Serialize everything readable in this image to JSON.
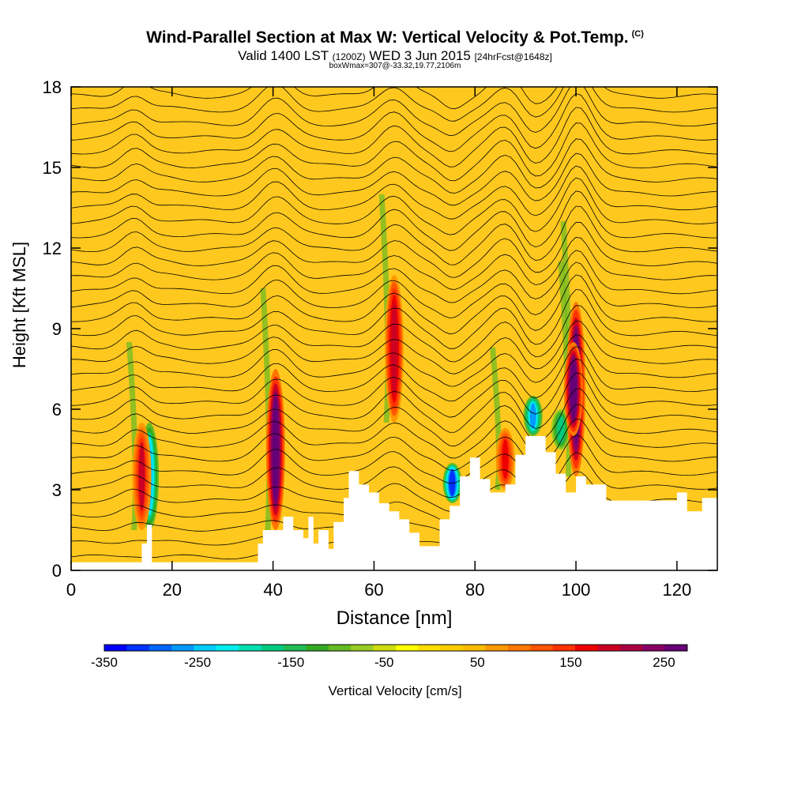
{
  "header": {
    "title": "Wind-Parallel Section at Max W: Vertical Velocity & Pot.Temp.",
    "copyright": "(C)",
    "valid_prefix": "Valid 1400 LST",
    "valid_utc": "(1200Z)",
    "valid_date": "WED 3 Jun 2015",
    "forecast": "[24hrFcst@1648z]",
    "box_info": "boxWmax=307@-33.32,19.77,2106m"
  },
  "chart_data": {
    "type": "heatmap",
    "title": "Wind-Parallel Section at Max W: Vertical Velocity & Pot.Temp.",
    "xlabel": "Distance [nm]",
    "ylabel": "Height [Kft MSL]",
    "xlim": [
      0,
      128
    ],
    "ylim": [
      0,
      18
    ],
    "x_ticks": [
      0,
      20,
      40,
      60,
      80,
      100,
      120
    ],
    "y_ticks": [
      0,
      3,
      6,
      9,
      12,
      15,
      18
    ],
    "colorbar": {
      "label": "Vertical Velocity [cm/s]",
      "range": [
        -350,
        275
      ],
      "tick_labels": [
        "-350",
        "-250",
        "-150",
        "-50",
        "50",
        "150",
        "250"
      ],
      "tick_values": [
        -350,
        -250,
        -150,
        -50,
        50,
        150,
        250
      ],
      "colors": [
        "#0000ff",
        "#0033ff",
        "#0066ff",
        "#0099ff",
        "#00ccff",
        "#00eeee",
        "#00e0b0",
        "#00cc80",
        "#22bb55",
        "#33aa22",
        "#66bb22",
        "#99cc22",
        "#ccdd11",
        "#ffff00",
        "#ffdd00",
        "#ffcc00",
        "#ffbb00",
        "#ff9900",
        "#ff7700",
        "#ff5500",
        "#ff3300",
        "#ee0000",
        "#cc0022",
        "#aa0044",
        "#880066",
        "#660077"
      ]
    },
    "background_color": "#ffc81e",
    "updrafts": [
      {
        "x": 14,
        "z_bottom": 1.5,
        "z_top": 5.5,
        "w": 180
      },
      {
        "x": 40.5,
        "z_bottom": 1.5,
        "z_top": 7.5,
        "w": 275
      },
      {
        "x": 64,
        "z_bottom": 5.5,
        "z_top": 11.0,
        "w": 200
      },
      {
        "x": 86,
        "z_bottom": 3.0,
        "z_top": 5.3,
        "w": 170
      },
      {
        "x": 100,
        "z_bottom": 3.5,
        "z_top": 10.0,
        "w": 300
      },
      {
        "x": 99.5,
        "z_bottom": 5.0,
        "z_top": 8.5,
        "w": 275
      }
    ],
    "downdrafts": [
      {
        "x": 15.5,
        "z_bottom": 1.5,
        "z_top": 5.5,
        "w": -250
      },
      {
        "x": 75.5,
        "z_bottom": 2.5,
        "z_top": 4.0,
        "w": -320
      },
      {
        "x": 91.5,
        "z_bottom": 5.0,
        "z_top": 6.5,
        "w": -260
      },
      {
        "x": 97.0,
        "z_bottom": 4.5,
        "z_top": 6.0,
        "w": -180
      }
    ],
    "terrain_profile": [
      [
        0,
        0.3
      ],
      [
        14,
        0.3
      ],
      [
        14,
        1.0
      ],
      [
        15,
        1.0
      ],
      [
        15,
        1.7
      ],
      [
        16,
        1.7
      ],
      [
        16,
        0.3
      ],
      [
        37,
        0.3
      ],
      [
        37,
        1.0
      ],
      [
        38,
        1.0
      ],
      [
        38,
        1.5
      ],
      [
        42,
        1.5
      ],
      [
        42,
        2.0
      ],
      [
        44,
        2.0
      ],
      [
        44,
        1.5
      ],
      [
        46,
        1.5
      ],
      [
        46,
        1.2
      ],
      [
        47,
        1.2
      ],
      [
        47,
        2.0
      ],
      [
        48,
        2.0
      ],
      [
        48,
        1.0
      ],
      [
        49,
        1.0
      ],
      [
        49,
        1.5
      ],
      [
        51,
        1.5
      ],
      [
        51,
        0.8
      ],
      [
        52,
        0.8
      ],
      [
        52,
        1.8
      ],
      [
        54,
        1.8
      ],
      [
        54,
        2.7
      ],
      [
        55,
        2.7
      ],
      [
        55,
        3.7
      ],
      [
        57,
        3.7
      ],
      [
        57,
        3.2
      ],
      [
        59,
        3.2
      ],
      [
        59,
        2.9
      ],
      [
        61,
        2.9
      ],
      [
        61,
        2.5
      ],
      [
        63,
        2.5
      ],
      [
        63,
        2.2
      ],
      [
        65,
        2.2
      ],
      [
        65,
        1.9
      ],
      [
        67,
        1.9
      ],
      [
        67,
        1.4
      ],
      [
        69,
        1.4
      ],
      [
        69,
        0.9
      ],
      [
        73,
        0.9
      ],
      [
        73,
        1.9
      ],
      [
        75,
        1.9
      ],
      [
        75,
        2.4
      ],
      [
        77,
        2.4
      ],
      [
        77,
        3.5
      ],
      [
        79,
        3.5
      ],
      [
        79,
        4.2
      ],
      [
        81,
        4.2
      ],
      [
        81,
        3.4
      ],
      [
        83,
        3.4
      ],
      [
        83,
        2.9
      ],
      [
        86,
        2.9
      ],
      [
        86,
        3.2
      ],
      [
        88,
        3.2
      ],
      [
        88,
        4.3
      ],
      [
        90,
        4.3
      ],
      [
        90,
        5.0
      ],
      [
        94,
        5.0
      ],
      [
        94,
        4.4
      ],
      [
        96,
        4.4
      ],
      [
        96,
        3.6
      ],
      [
        98,
        3.6
      ],
      [
        98,
        2.9
      ],
      [
        100,
        2.9
      ],
      [
        100,
        3.5
      ],
      [
        102,
        3.5
      ],
      [
        102,
        3.2
      ],
      [
        106,
        3.2
      ],
      [
        106,
        2.6
      ],
      [
        110,
        2.6
      ],
      [
        110,
        2.6
      ],
      [
        120,
        2.6
      ],
      [
        120,
        2.9
      ],
      [
        122,
        2.9
      ],
      [
        122,
        2.2
      ],
      [
        125,
        2.2
      ],
      [
        125,
        2.7
      ],
      [
        128,
        2.7
      ]
    ],
    "contours": {
      "field": "potential temperature",
      "count": 34,
      "base_height": 0.5,
      "spacing": 0.52
    }
  }
}
